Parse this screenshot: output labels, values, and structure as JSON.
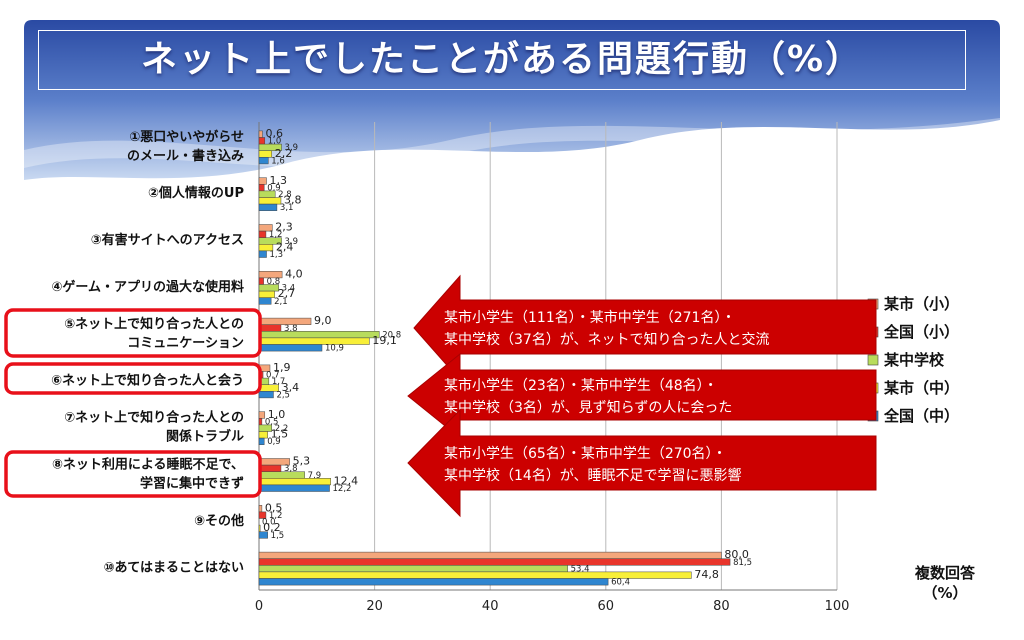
{
  "title": "ネット上でしたことがある問題行動（%）",
  "note": "複数回答\n（%）",
  "chart_data": {
    "type": "bar",
    "orientation": "horizontal",
    "title": "ネット上でしたことがある問題行動（%）",
    "categories": [
      [
        "①悪口やいやがらせ",
        "のメール・書き込み"
      ],
      [
        "②個人情報のUP"
      ],
      [
        "③有害サイトへのアクセス"
      ],
      [
        "④ゲーム・アプリの過大な使用料"
      ],
      [
        "⑤ネット上で知り合った人との",
        "コミュニケーション"
      ],
      [
        "⑥ネット上で知り合った人と会う"
      ],
      [
        "⑦ネット上で知り合った人との",
        "関係トラブル"
      ],
      [
        "⑧ネット利用による睡眠不足で、",
        "学習に集中できず"
      ],
      [
        "⑨その他"
      ],
      [
        "⑩あてはまることはない"
      ]
    ],
    "highlighted": [
      4,
      5,
      7
    ],
    "series": [
      {
        "name": "某市（小）",
        "color": "#f4a77c",
        "values": [
          0.6,
          1.3,
          2.3,
          4.0,
          9.0,
          1.9,
          1.0,
          5.3,
          0.5,
          80.0
        ],
        "labels": [
          "0,6",
          "1,3",
          "2,3",
          "4,0",
          "9,0",
          "1,9",
          "1,0",
          "5,3",
          "0,5",
          "80,0"
        ]
      },
      {
        "name": "全国（小）",
        "color": "#e8352b",
        "values": [
          1.0,
          0.9,
          1.2,
          0.8,
          3.8,
          0.7,
          0.5,
          3.8,
          1.2,
          81.5
        ],
        "labels": [
          "1,0",
          "0,9",
          "1,2",
          "0,8",
          "3,8",
          "0,7",
          "0,5",
          "3,8",
          "1,2",
          "81,5"
        ]
      },
      {
        "name": "某中学校",
        "color": "#b8dc5c",
        "values": [
          3.9,
          2.8,
          3.9,
          3.4,
          20.8,
          1.7,
          2.2,
          7.9,
          0.0,
          53.4
        ],
        "labels": [
          "3,9",
          "2,8",
          "3,9",
          "3,4",
          "20,8",
          "1,7",
          "2,2",
          "7,9",
          "0,0",
          "53,4"
        ]
      },
      {
        "name": "某市（中）",
        "color": "#f8ef38",
        "values": [
          2.2,
          3.8,
          2.4,
          2.7,
          19.1,
          3.4,
          1.5,
          12.4,
          0.2,
          74.8
        ],
        "labels": [
          "2,2",
          "3,8",
          "2,4",
          "2,7",
          "19,1",
          "3,4",
          "1,5",
          "12,4",
          "0,2",
          "74,8"
        ]
      },
      {
        "name": "全国（中）",
        "color": "#2f86d0",
        "values": [
          1.6,
          3.1,
          1.3,
          2.1,
          10.9,
          2.5,
          0.9,
          12.2,
          1.5,
          60.4
        ],
        "labels": [
          "1,6",
          "3,1",
          "1,3",
          "2,1",
          "10,9",
          "2,5",
          "0,9",
          "12,2",
          "1,5",
          "60,4"
        ]
      }
    ],
    "xlim": [
      0,
      100
    ],
    "xticks": [
      0,
      20,
      40,
      60,
      80,
      100
    ],
    "legend_position": "right",
    "grid": true
  },
  "annotations": [
    {
      "lines": [
        "某市小学生（111名）・某市中学生（271名）・",
        "某中学校（37名）が、ネットで知り合った人と交流"
      ]
    },
    {
      "lines": [
        "某市小学生（23名）・某市中学生（48名）・",
        "某中学校（3名）が、見ず知らずの人に会った"
      ]
    },
    {
      "lines": [
        "某市小学生（65名）・某市中学生（270名）・",
        "某中学校（14名）が、睡眠不足で学習に悪影響"
      ]
    }
  ],
  "colors": {
    "header_blue": "#2d4fa6",
    "arrow_red": "#cc0000",
    "highlight_red": "#e8101a"
  }
}
